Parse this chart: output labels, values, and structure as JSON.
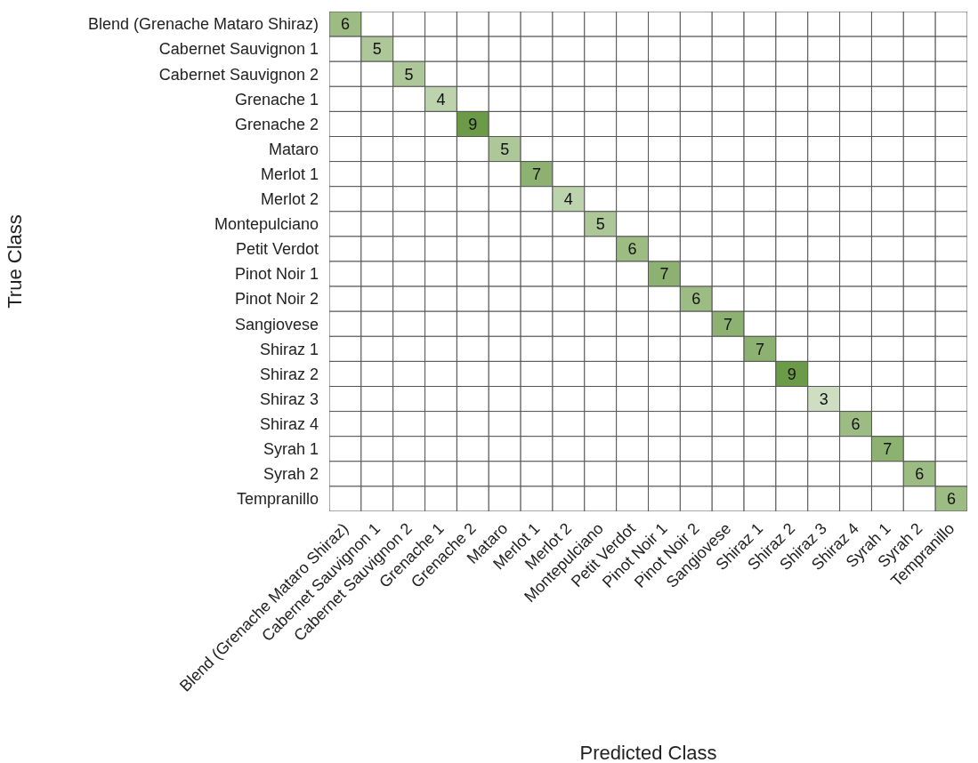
{
  "chart_data": {
    "type": "heatmap",
    "xlabel": "Predicted Class",
    "ylabel": "True Class",
    "color": "#6b9b47",
    "categories": [
      "Blend (Grenache Mataro Shiraz)",
      "Cabernet Sauvignon 1",
      "Cabernet Sauvignon 2",
      "Grenache 1",
      "Grenache 2",
      "Mataro",
      "Merlot 1",
      "Merlot 2",
      "Montepulciano",
      "Petit Verdot",
      "Pinot Noir 1",
      "Pinot Noir 2",
      "Sangiovese",
      "Shiraz 1",
      "Shiraz 2",
      "Shiraz 3",
      "Shiraz 4",
      "Syrah 1",
      "Syrah 2",
      "Tempranillo"
    ],
    "y_categories": [
      "Blend (Grenache Mataro Shiraz)",
      "Cabernet Sauvignon 1",
      "Cabernet Sauvignon 2",
      "Grenache 1",
      "Grenache 2",
      "Mataro",
      "Merlot 1",
      "Merlot 2",
      "Montepulciano",
      "Petit Verdot",
      "Pinot Noir 1",
      "Pinot Noir 2",
      "Sangiovese",
      "Shiraz 1",
      "Shiraz 2",
      "Shiraz 3",
      "Shiraz 4",
      "Syrah 1",
      "Syrah 2",
      "Tempranillo"
    ],
    "cells": [
      [
        6,
        null,
        null,
        null,
        null,
        null,
        null,
        null,
        null,
        null,
        null,
        null,
        null,
        null,
        null,
        null,
        null,
        null,
        null,
        null
      ],
      [
        null,
        5,
        null,
        null,
        null,
        null,
        null,
        null,
        null,
        null,
        null,
        null,
        null,
        null,
        null,
        null,
        null,
        null,
        null,
        null
      ],
      [
        null,
        null,
        5,
        null,
        null,
        null,
        null,
        null,
        null,
        null,
        null,
        null,
        null,
        null,
        null,
        null,
        null,
        null,
        null,
        null
      ],
      [
        null,
        null,
        null,
        4,
        null,
        null,
        null,
        null,
        null,
        null,
        null,
        null,
        null,
        null,
        null,
        null,
        null,
        null,
        null,
        null
      ],
      [
        null,
        null,
        null,
        null,
        9,
        null,
        null,
        null,
        null,
        null,
        null,
        null,
        null,
        null,
        null,
        null,
        null,
        null,
        null,
        null
      ],
      [
        null,
        null,
        null,
        null,
        null,
        5,
        null,
        null,
        null,
        null,
        null,
        null,
        null,
        null,
        null,
        null,
        null,
        null,
        null,
        null
      ],
      [
        null,
        null,
        null,
        null,
        null,
        null,
        7,
        null,
        null,
        null,
        null,
        null,
        null,
        null,
        null,
        null,
        null,
        null,
        null,
        null
      ],
      [
        null,
        null,
        null,
        null,
        null,
        null,
        null,
        4,
        null,
        null,
        null,
        null,
        null,
        null,
        null,
        null,
        null,
        null,
        null,
        null
      ],
      [
        null,
        null,
        null,
        null,
        null,
        null,
        null,
        null,
        5,
        null,
        null,
        null,
        null,
        null,
        null,
        null,
        null,
        null,
        null,
        null
      ],
      [
        null,
        null,
        null,
        null,
        null,
        null,
        null,
        null,
        null,
        6,
        null,
        null,
        null,
        null,
        null,
        null,
        null,
        null,
        null,
        null
      ],
      [
        null,
        null,
        null,
        null,
        null,
        null,
        null,
        null,
        null,
        null,
        7,
        null,
        null,
        null,
        null,
        null,
        null,
        null,
        null,
        null
      ],
      [
        null,
        null,
        null,
        null,
        null,
        null,
        null,
        null,
        null,
        null,
        null,
        6,
        null,
        null,
        null,
        null,
        null,
        null,
        null,
        null
      ],
      [
        null,
        null,
        null,
        null,
        null,
        null,
        null,
        null,
        null,
        null,
        null,
        null,
        7,
        null,
        null,
        null,
        null,
        null,
        null,
        null
      ],
      [
        null,
        null,
        null,
        null,
        null,
        null,
        null,
        null,
        null,
        null,
        null,
        null,
        null,
        7,
        null,
        null,
        null,
        null,
        null,
        null
      ],
      [
        null,
        null,
        null,
        null,
        null,
        null,
        null,
        null,
        null,
        null,
        null,
        null,
        null,
        null,
        9,
        null,
        null,
        null,
        null,
        null
      ],
      [
        null,
        null,
        null,
        null,
        null,
        null,
        null,
        null,
        null,
        null,
        null,
        null,
        null,
        null,
        null,
        3,
        null,
        null,
        null,
        null
      ],
      [
        null,
        null,
        null,
        null,
        null,
        null,
        null,
        null,
        null,
        null,
        null,
        null,
        null,
        null,
        null,
        null,
        6,
        null,
        null,
        null
      ],
      [
        null,
        null,
        null,
        null,
        null,
        null,
        null,
        null,
        null,
        null,
        null,
        null,
        null,
        null,
        null,
        null,
        null,
        7,
        null,
        null
      ],
      [
        null,
        null,
        null,
        null,
        null,
        null,
        null,
        null,
        null,
        null,
        null,
        null,
        null,
        null,
        null,
        null,
        null,
        null,
        6,
        null
      ],
      [
        null,
        null,
        null,
        null,
        null,
        null,
        null,
        null,
        null,
        null,
        null,
        null,
        null,
        null,
        null,
        null,
        null,
        null,
        null,
        6
      ]
    ],
    "data_labels": true
  }
}
